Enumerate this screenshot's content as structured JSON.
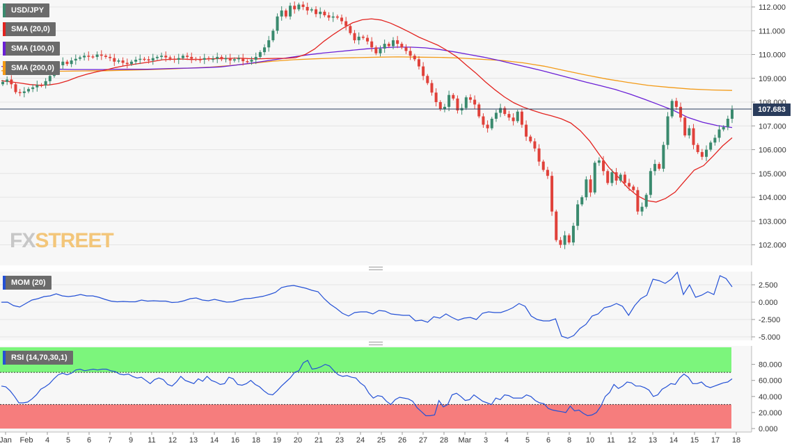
{
  "symbol": "USD/JPY",
  "last_price": "107.683",
  "brand": {
    "fx": "FX",
    "street": "STREET"
  },
  "legends": {
    "sma20": "SMA (20,0)",
    "sma100": "SMA (100,0)",
    "sma200": "SMA (200,0)",
    "mom": "MOM (20)",
    "rsi": "RSI (14,70,30,1)"
  },
  "colors": {
    "bull": "#3a8a6e",
    "bear": "#e0413a",
    "sma20": "#e3231f",
    "sma100": "#6a1fd6",
    "sma200": "#f39a16",
    "mom": "#2451d6",
    "rsi": "#2451d6",
    "rsi_high_zone": "#7cf57c",
    "rsi_low_zone": "#f67d7d",
    "price_line": "#2a3c5c"
  },
  "chart_data": [
    {
      "type": "candlestick",
      "title": "USD/JPY",
      "ylim": [
        101.2,
        112.2
      ],
      "yticks": [
        "112.000",
        "111.000",
        "110.000",
        "109.000",
        "108.000",
        "107.000",
        "106.000",
        "105.000",
        "104.000",
        "103.000",
        "102.000"
      ],
      "last": 107.683,
      "close": [
        108.85,
        108.95,
        108.75,
        108.42,
        108.38,
        108.45,
        108.55,
        108.62,
        108.72,
        108.7,
        108.88,
        109.1,
        109.38,
        109.55,
        109.7,
        109.6,
        109.75,
        109.82,
        109.88,
        109.95,
        109.92,
        109.9,
        110.0,
        109.95,
        109.9,
        109.85,
        109.7,
        109.75,
        109.65,
        109.6,
        109.7,
        109.78,
        109.82,
        109.8,
        109.75,
        109.85,
        109.9,
        109.95,
        109.88,
        109.82,
        109.78,
        109.85,
        109.95,
        109.9,
        109.82,
        109.8,
        109.78,
        109.85,
        109.8,
        109.82,
        109.9,
        109.8,
        109.85,
        109.75,
        109.8,
        109.85,
        109.72,
        109.7,
        109.78,
        109.9,
        110.1,
        110.3,
        110.6,
        111.0,
        111.6,
        111.85,
        111.6,
        112.05,
        111.9,
        112.1,
        112.0,
        111.85,
        111.9,
        111.7,
        111.8,
        111.65,
        111.55,
        111.6,
        111.55,
        111.4,
        111.2,
        110.9,
        110.6,
        110.75,
        110.7,
        110.55,
        110.3,
        110.05,
        110.25,
        110.45,
        110.35,
        110.6,
        110.45,
        110.3,
        110.15,
        109.95,
        109.8,
        109.5,
        109.1,
        108.8,
        108.4,
        108.0,
        107.7,
        107.8,
        108.3,
        108.15,
        107.65,
        107.75,
        108.2,
        108.1,
        107.9,
        107.4,
        107.05,
        106.9,
        107.3,
        107.55,
        107.75,
        107.5,
        107.35,
        107.2,
        107.6,
        107.05,
        106.55,
        106.35,
        106.05,
        105.5,
        105.15,
        104.9,
        103.4,
        102.2,
        102.0,
        102.4,
        102.1,
        102.8,
        103.7,
        104.0,
        104.75,
        104.2,
        105.45,
        105.55,
        105.1,
        104.6,
        105.05,
        104.7,
        104.95,
        104.6,
        104.45,
        104.3,
        103.4,
        103.6,
        104.1,
        105.1,
        105.4,
        105.2,
        106.2,
        107.4,
        108.05,
        107.8,
        107.35,
        106.6,
        106.9,
        106.2,
        105.9,
        105.7,
        106.0,
        106.3,
        106.5,
        106.85,
        106.95,
        107.3,
        107.68
      ],
      "sma20": [
        108.9,
        108.85,
        108.8,
        108.74,
        108.71,
        108.72,
        108.78,
        108.9,
        109.05,
        109.17,
        109.27,
        109.35,
        109.45,
        109.53,
        109.59,
        109.65,
        109.71,
        109.78,
        109.8,
        109.81,
        109.79,
        109.8,
        109.82,
        109.83,
        109.84,
        109.85,
        109.83,
        109.82,
        109.83,
        109.84,
        109.84,
        109.87,
        110.0,
        110.23,
        110.56,
        110.85,
        111.11,
        111.33,
        111.46,
        111.5,
        111.45,
        111.32,
        111.14,
        110.94,
        110.73,
        110.56,
        110.39,
        110.16,
        109.9,
        109.55,
        109.22,
        108.85,
        108.52,
        108.22,
        107.97,
        107.79,
        107.65,
        107.52,
        107.42,
        107.3,
        107.12,
        106.8,
        106.36,
        105.8,
        105.26,
        104.85,
        104.4,
        104.07,
        103.86,
        103.8,
        103.95,
        104.22,
        104.68,
        105.14,
        105.33,
        105.73,
        106.16,
        106.5
      ],
      "sma100": [
        109.5,
        109.45,
        109.42,
        109.4,
        109.38,
        109.37,
        109.37,
        109.37,
        109.38,
        109.38,
        109.38,
        109.4,
        109.42,
        109.43,
        109.45,
        109.48,
        109.55,
        109.63,
        109.72,
        109.81,
        109.9,
        109.99,
        110.06,
        110.12,
        110.18,
        110.24,
        110.28,
        110.31,
        110.31,
        110.28,
        110.21,
        110.11,
        110.0,
        109.89,
        109.76,
        109.61,
        109.47,
        109.32,
        109.16,
        109.0,
        108.84,
        108.69,
        108.53,
        108.34,
        108.12,
        107.89,
        107.65,
        107.35,
        107.15,
        107.01,
        106.93
      ],
      "sma200": [
        109.32,
        109.3,
        109.3,
        109.3,
        109.31,
        109.32,
        109.34,
        109.36,
        109.39,
        109.43,
        109.47,
        109.54,
        109.63,
        109.72,
        109.78,
        109.82,
        109.85,
        109.87,
        109.89,
        109.9,
        109.89,
        109.88,
        109.85,
        109.8,
        109.75,
        109.65,
        109.51,
        109.32,
        109.14,
        108.97,
        108.83,
        108.7,
        108.62,
        108.55,
        108.51,
        108.49
      ]
    },
    {
      "type": "line",
      "title": "MOM (20)",
      "ylim": [
        -5.5,
        4.5
      ],
      "yticks": [
        "2.500",
        "0.000",
        "-2.500",
        "-5.000"
      ],
      "values": [
        -0.01,
        0.0,
        -0.5,
        -0.7,
        -0.2,
        0.3,
        0.5,
        0.8,
        0.9,
        1.2,
        0.9,
        0.8,
        0.9,
        1.1,
        0.9,
        0.9,
        0.7,
        0.4,
        0.15,
        0.05,
        0.1,
        0.05,
        0.05,
        0.3,
        0.15,
        0.2,
        0.15,
        0.15,
        -0.05,
        0.0,
        0.2,
        0.5,
        0.6,
        0.3,
        0.2,
        0.4,
        0.2,
        0.0,
        0.05,
        0.3,
        0.5,
        0.55,
        0.7,
        0.85,
        1.1,
        1.4,
        2.1,
        2.3,
        2.4,
        2.2,
        2.0,
        1.7,
        1.5,
        0.5,
        -0.3,
        -0.9,
        -1.6,
        -2.0,
        -1.5,
        -1.4,
        -1.4,
        -1.7,
        -1.2,
        -1.3,
        -1.7,
        -1.8,
        -1.9,
        -1.9,
        -2.7,
        -2.6,
        -2.9,
        -2.1,
        -2.3,
        -1.7,
        -2.2,
        -2.6,
        -2.3,
        -2.2,
        -2.5,
        -1.6,
        -1.4,
        -1.5,
        -1.5,
        -1.2,
        -0.8,
        -0.2,
        -0.6,
        -2.0,
        -2.5,
        -2.7,
        -2.7,
        -2.4,
        -4.9,
        -5.2,
        -4.8,
        -3.8,
        -3.2,
        -2.0,
        -1.7,
        -0.8,
        -0.6,
        -0.2,
        -0.6,
        -1.9,
        -0.5,
        0.5,
        1.0,
        3.3,
        3.1,
        2.7,
        3.3,
        4.3,
        1.1,
        2.5,
        0.7,
        1.0,
        1.5,
        1.1,
        3.8,
        3.4,
        2.2
      ],
      "series": [
        {
          "name": "MOM (20)"
        }
      ]
    },
    {
      "type": "line",
      "title": "RSI (14,70,30,1)",
      "ylim": [
        0,
        100
      ],
      "yticks": [
        "80.000",
        "60.000",
        "40.000",
        "20.000",
        "0.000"
      ],
      "bands": {
        "upper": 70,
        "lower": 30
      },
      "values": [
        53,
        52,
        47,
        40,
        32,
        32,
        33,
        37,
        42,
        49,
        52,
        56,
        62,
        67,
        69,
        67,
        69,
        73,
        74,
        72,
        73,
        74,
        73,
        74,
        74,
        72,
        71,
        68,
        67,
        68,
        65,
        63,
        64,
        60,
        56,
        61,
        63,
        61,
        55,
        53,
        58,
        65,
        60,
        58,
        56,
        62,
        59,
        65,
        60,
        58,
        55,
        56,
        64,
        62,
        55,
        54,
        56,
        60,
        55,
        52,
        47,
        43,
        42,
        47,
        53,
        58,
        63,
        70,
        72,
        82,
        85,
        74,
        75,
        77,
        80,
        78,
        72,
        67,
        65,
        66,
        64,
        63,
        57,
        53,
        44,
        38,
        41,
        40,
        34,
        30,
        36,
        39,
        38,
        37,
        34,
        26,
        21,
        16,
        16,
        17,
        35,
        27,
        30,
        42,
        44,
        40,
        35,
        36,
        42,
        38,
        34,
        32,
        30,
        38,
        36,
        42,
        41,
        38,
        38,
        38,
        42,
        40,
        35,
        32,
        31,
        25,
        23,
        22,
        21,
        20,
        28,
        22,
        23,
        19,
        16,
        17,
        20,
        28,
        40,
        45,
        55,
        50,
        53,
        58,
        57,
        53,
        53,
        51,
        48,
        40,
        42,
        49,
        52,
        56,
        55,
        63,
        68,
        64,
        56,
        56,
        58,
        53,
        51,
        53,
        55,
        57,
        58,
        62
      ]
    }
  ],
  "x_axis": {
    "labels": [
      "Jan",
      "Feb",
      "4",
      "5",
      "6",
      "7",
      "9",
      "11",
      "12",
      "13",
      "14",
      "16",
      "18",
      "19",
      "20",
      "21",
      "23",
      "24",
      "25",
      "26",
      "27",
      "28",
      "Mar",
      "3",
      "4",
      "5",
      "6",
      "8",
      "10",
      "11",
      "12",
      "13",
      "14",
      "15",
      "17",
      "18"
    ]
  }
}
